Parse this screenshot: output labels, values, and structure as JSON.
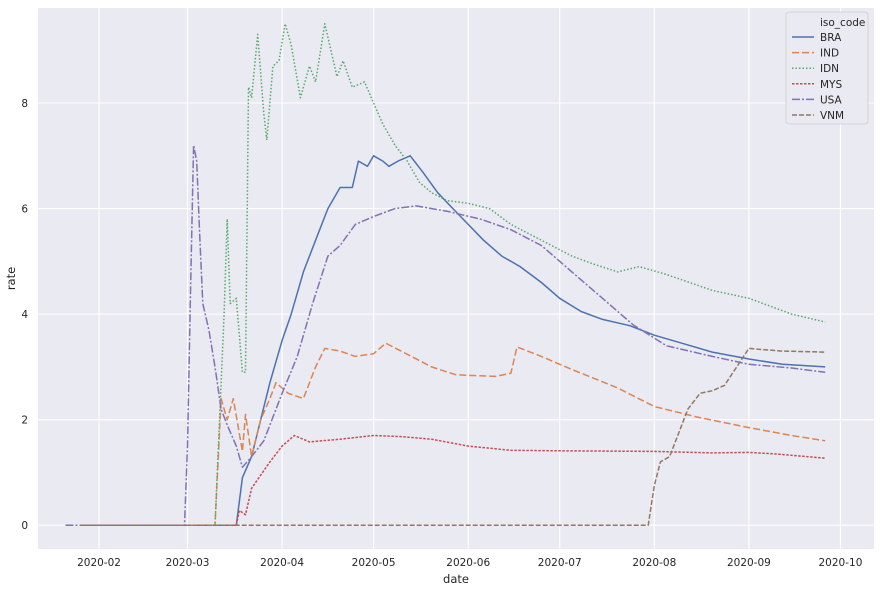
{
  "chart_data": {
    "type": "line",
    "xlabel": "date",
    "ylabel": "rate",
    "x_ticks": [
      "2020-02",
      "2020-03",
      "2020-04",
      "2020-05",
      "2020-06",
      "2020-07",
      "2020-08",
      "2020-09",
      "2020-10"
    ],
    "y_ticks": [
      0,
      2,
      4,
      6,
      8
    ],
    "xlim": [
      "2020-01-12",
      "2020-10-12"
    ],
    "ylim": [
      -0.45,
      9.8
    ],
    "grid": true,
    "legend": {
      "title": "iso_code",
      "position": "top-right"
    },
    "series": [
      {
        "name": "BRA",
        "color": "#4c72b0",
        "dash": "solid",
        "points": [
          [
            "2020-01-26",
            0
          ],
          [
            "2020-03-17",
            0
          ],
          [
            "2020-03-19",
            0.9
          ],
          [
            "2020-03-22",
            1.3
          ],
          [
            "2020-03-25",
            2.0
          ],
          [
            "2020-03-28",
            2.7
          ],
          [
            "2020-04-01",
            3.5
          ],
          [
            "2020-04-04",
            4.0
          ],
          [
            "2020-04-08",
            4.8
          ],
          [
            "2020-04-12",
            5.4
          ],
          [
            "2020-04-16",
            6.0
          ],
          [
            "2020-04-20",
            6.4
          ],
          [
            "2020-04-24",
            6.4
          ],
          [
            "2020-04-26",
            6.9
          ],
          [
            "2020-04-29",
            6.8
          ],
          [
            "2020-05-01",
            7.0
          ],
          [
            "2020-05-04",
            6.9
          ],
          [
            "2020-05-06",
            6.8
          ],
          [
            "2020-05-09",
            6.9
          ],
          [
            "2020-05-13",
            7.0
          ],
          [
            "2020-05-17",
            6.7
          ],
          [
            "2020-05-22",
            6.3
          ],
          [
            "2020-05-27",
            6.0
          ],
          [
            "2020-06-01",
            5.7
          ],
          [
            "2020-06-06",
            5.4
          ],
          [
            "2020-06-12",
            5.1
          ],
          [
            "2020-06-18",
            4.9
          ],
          [
            "2020-06-25",
            4.6
          ],
          [
            "2020-07-01",
            4.3
          ],
          [
            "2020-07-08",
            4.05
          ],
          [
            "2020-07-15",
            3.9
          ],
          [
            "2020-07-24",
            3.78
          ],
          [
            "2020-08-01",
            3.6
          ],
          [
            "2020-08-10",
            3.45
          ],
          [
            "2020-08-20",
            3.28
          ],
          [
            "2020-09-01",
            3.15
          ],
          [
            "2020-09-12",
            3.05
          ],
          [
            "2020-09-26",
            3.0
          ]
        ]
      },
      {
        "name": "IND",
        "color": "#dd8452",
        "dash": "7,3",
        "points": [
          [
            "2020-01-26",
            0
          ],
          [
            "2020-03-10",
            0
          ],
          [
            "2020-03-12",
            2.4
          ],
          [
            "2020-03-14",
            2.0
          ],
          [
            "2020-03-16",
            2.4
          ],
          [
            "2020-03-19",
            1.4
          ],
          [
            "2020-03-20",
            2.1
          ],
          [
            "2020-03-22",
            1.3
          ],
          [
            "2020-03-25",
            2.0
          ],
          [
            "2020-03-28",
            2.4
          ],
          [
            "2020-03-30",
            2.7
          ],
          [
            "2020-04-03",
            2.5
          ],
          [
            "2020-04-08",
            2.4
          ],
          [
            "2020-04-12",
            3.0
          ],
          [
            "2020-04-15",
            3.35
          ],
          [
            "2020-04-20",
            3.3
          ],
          [
            "2020-04-25",
            3.2
          ],
          [
            "2020-05-01",
            3.25
          ],
          [
            "2020-05-05",
            3.45
          ],
          [
            "2020-05-10",
            3.3
          ],
          [
            "2020-05-20",
            3.0
          ],
          [
            "2020-05-28",
            2.85
          ],
          [
            "2020-06-10",
            2.82
          ],
          [
            "2020-06-15",
            2.88
          ],
          [
            "2020-06-17",
            3.38
          ],
          [
            "2020-06-25",
            3.2
          ],
          [
            "2020-07-05",
            2.95
          ],
          [
            "2020-07-20",
            2.6
          ],
          [
            "2020-08-01",
            2.25
          ],
          [
            "2020-08-15",
            2.05
          ],
          [
            "2020-09-01",
            1.85
          ],
          [
            "2020-09-15",
            1.7
          ],
          [
            "2020-09-26",
            1.6
          ]
        ]
      },
      {
        "name": "IDN",
        "color": "#55a868",
        "dash": "1.5,2",
        "points": [
          [
            "2020-01-26",
            0
          ],
          [
            "2020-03-10",
            0
          ],
          [
            "2020-03-13",
            4.0
          ],
          [
            "2020-03-14",
            5.8
          ],
          [
            "2020-03-15",
            4.2
          ],
          [
            "2020-03-17",
            4.3
          ],
          [
            "2020-03-19",
            2.9
          ],
          [
            "2020-03-20",
            2.9
          ],
          [
            "2020-03-21",
            8.3
          ],
          [
            "2020-03-22",
            8.1
          ],
          [
            "2020-03-24",
            9.3
          ],
          [
            "2020-03-26",
            7.8
          ],
          [
            "2020-03-27",
            7.3
          ],
          [
            "2020-03-29",
            8.7
          ],
          [
            "2020-03-31",
            8.8
          ],
          [
            "2020-04-02",
            9.5
          ],
          [
            "2020-04-04",
            9.1
          ],
          [
            "2020-04-07",
            8.1
          ],
          [
            "2020-04-10",
            8.7
          ],
          [
            "2020-04-12",
            8.4
          ],
          [
            "2020-04-15",
            9.5
          ],
          [
            "2020-04-19",
            8.5
          ],
          [
            "2020-04-21",
            8.8
          ],
          [
            "2020-04-24",
            8.3
          ],
          [
            "2020-04-28",
            8.4
          ],
          [
            "2020-05-01",
            8.0
          ],
          [
            "2020-05-04",
            7.6
          ],
          [
            "2020-05-08",
            7.2
          ],
          [
            "2020-05-12",
            6.9
          ],
          [
            "2020-05-16",
            6.5
          ],
          [
            "2020-05-20",
            6.3
          ],
          [
            "2020-05-25",
            6.15
          ],
          [
            "2020-06-01",
            6.1
          ],
          [
            "2020-06-08",
            6.0
          ],
          [
            "2020-06-15",
            5.7
          ],
          [
            "2020-06-25",
            5.4
          ],
          [
            "2020-07-05",
            5.1
          ],
          [
            "2020-07-12",
            4.95
          ],
          [
            "2020-07-20",
            4.8
          ],
          [
            "2020-07-27",
            4.9
          ],
          [
            "2020-08-05",
            4.75
          ],
          [
            "2020-08-20",
            4.45
          ],
          [
            "2020-09-01",
            4.3
          ],
          [
            "2020-09-15",
            4.0
          ],
          [
            "2020-09-26",
            3.85
          ]
        ]
      },
      {
        "name": "MYS",
        "color": "#c44e52",
        "dash": "2.5,1.5",
        "points": [
          [
            "2020-01-26",
            0
          ],
          [
            "2020-03-17",
            0
          ],
          [
            "2020-03-18",
            0.28
          ],
          [
            "2020-03-20",
            0.2
          ],
          [
            "2020-03-22",
            0.7
          ],
          [
            "2020-03-25",
            0.95
          ],
          [
            "2020-03-28",
            1.2
          ],
          [
            "2020-04-01",
            1.5
          ],
          [
            "2020-04-05",
            1.7
          ],
          [
            "2020-04-10",
            1.58
          ],
          [
            "2020-04-20",
            1.63
          ],
          [
            "2020-05-01",
            1.7
          ],
          [
            "2020-05-10",
            1.68
          ],
          [
            "2020-05-20",
            1.63
          ],
          [
            "2020-06-01",
            1.5
          ],
          [
            "2020-06-15",
            1.42
          ],
          [
            "2020-07-01",
            1.41
          ],
          [
            "2020-08-01",
            1.4
          ],
          [
            "2020-08-20",
            1.37
          ],
          [
            "2020-09-01",
            1.38
          ],
          [
            "2020-09-10",
            1.35
          ],
          [
            "2020-09-26",
            1.27
          ]
        ]
      },
      {
        "name": "USA",
        "color": "#8172b3",
        "dash": "8,2,2,2",
        "points": [
          [
            "2020-01-21",
            0
          ],
          [
            "2020-02-29",
            0
          ],
          [
            "2020-03-01",
            1.5
          ],
          [
            "2020-03-02",
            4.5
          ],
          [
            "2020-03-03",
            7.2
          ],
          [
            "2020-03-04",
            6.9
          ],
          [
            "2020-03-05",
            5.5
          ],
          [
            "2020-03-06",
            4.2
          ],
          [
            "2020-03-08",
            3.7
          ],
          [
            "2020-03-10",
            3.0
          ],
          [
            "2020-03-12",
            2.2
          ],
          [
            "2020-03-14",
            1.9
          ],
          [
            "2020-03-17",
            1.5
          ],
          [
            "2020-03-19",
            1.1
          ],
          [
            "2020-03-22",
            1.3
          ],
          [
            "2020-03-26",
            1.6
          ],
          [
            "2020-04-01",
            2.5
          ],
          [
            "2020-04-06",
            3.2
          ],
          [
            "2020-04-11",
            4.2
          ],
          [
            "2020-04-16",
            5.1
          ],
          [
            "2020-04-20",
            5.3
          ],
          [
            "2020-04-25",
            5.7
          ],
          [
            "2020-05-01",
            5.85
          ],
          [
            "2020-05-08",
            6.0
          ],
          [
            "2020-05-15",
            6.05
          ],
          [
            "2020-05-25",
            5.95
          ],
          [
            "2020-06-05",
            5.8
          ],
          [
            "2020-06-15",
            5.6
          ],
          [
            "2020-06-25",
            5.3
          ],
          [
            "2020-07-05",
            4.8
          ],
          [
            "2020-07-15",
            4.3
          ],
          [
            "2020-07-25",
            3.8
          ],
          [
            "2020-08-05",
            3.4
          ],
          [
            "2020-08-20",
            3.2
          ],
          [
            "2020-09-01",
            3.05
          ],
          [
            "2020-09-15",
            2.98
          ],
          [
            "2020-09-26",
            2.9
          ]
        ]
      },
      {
        "name": "VNM",
        "color": "#937860",
        "dash": "5,2",
        "points": [
          [
            "2020-01-26",
            0
          ],
          [
            "2020-07-30",
            0
          ],
          [
            "2020-08-01",
            0.75
          ],
          [
            "2020-08-03",
            1.2
          ],
          [
            "2020-08-06",
            1.3
          ],
          [
            "2020-08-08",
            1.6
          ],
          [
            "2020-08-12",
            2.2
          ],
          [
            "2020-08-16",
            2.5
          ],
          [
            "2020-08-20",
            2.55
          ],
          [
            "2020-08-24",
            2.65
          ],
          [
            "2020-08-28",
            3.0
          ],
          [
            "2020-09-01",
            3.35
          ],
          [
            "2020-09-05",
            3.33
          ],
          [
            "2020-09-12",
            3.3
          ],
          [
            "2020-09-26",
            3.28
          ]
        ]
      }
    ]
  }
}
